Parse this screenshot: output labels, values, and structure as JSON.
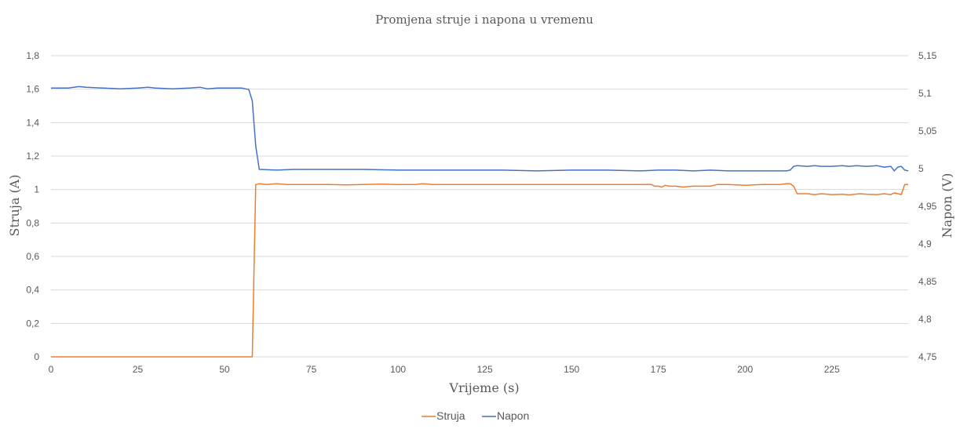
{
  "chart_data": {
    "type": "line",
    "title": "Promjena struje i napona u vremenu",
    "xlabel": "Vrijeme (s)",
    "ylabel": "Struja (A)",
    "y2label": "Napon (V)",
    "xlim": [
      0,
      247
    ],
    "ylim": [
      0,
      1.8
    ],
    "y2lim": [
      4.75,
      5.15
    ],
    "x_ticks": [
      0,
      25,
      50,
      75,
      100,
      125,
      150,
      175,
      200,
      225
    ],
    "x_tick_labels": [
      "0",
      "25",
      "50",
      "75",
      "100",
      "125",
      "150",
      "175",
      "200",
      "225"
    ],
    "y_ticks": [
      0,
      0.2,
      0.4,
      0.6,
      0.8,
      1.0,
      1.2,
      1.4,
      1.6,
      1.8
    ],
    "y_tick_labels": [
      "0",
      "0,2",
      "0,4",
      "0,6",
      "0,8",
      "1",
      "1,2",
      "1,4",
      "1,6",
      "1,8"
    ],
    "y2_ticks": [
      4.75,
      4.8,
      4.85,
      4.9,
      4.95,
      5.0,
      5.05,
      5.1,
      5.15
    ],
    "y2_tick_labels": [
      "4,75",
      "4,8",
      "4,85",
      "4,9",
      "4,95",
      "5",
      "5,05",
      "5,1",
      "5,15"
    ],
    "grid": true,
    "legend_position": "bottom",
    "series": [
      {
        "name": "Struja",
        "axis": "left",
        "color": "#ED7D31",
        "x": [
          0,
          20,
          40,
          57,
          58,
          59,
          60,
          62,
          65,
          68,
          70,
          80,
          85,
          90,
          95,
          100,
          105,
          107,
          110,
          120,
          130,
          140,
          150,
          160,
          170,
          173,
          174,
          175,
          176,
          177,
          178,
          180,
          182,
          185,
          190,
          191,
          192,
          195,
          200,
          205,
          210,
          212,
          213,
          214,
          215,
          218,
          220,
          222,
          225,
          228,
          230,
          233,
          235,
          238,
          240,
          242,
          243,
          244,
          245,
          246,
          247
        ],
        "y": [
          0,
          0,
          0,
          0,
          0,
          1.03,
          1.035,
          1.03,
          1.035,
          1.03,
          1.03,
          1.03,
          1.028,
          1.03,
          1.032,
          1.03,
          1.03,
          1.035,
          1.03,
          1.03,
          1.03,
          1.03,
          1.03,
          1.03,
          1.03,
          1.03,
          1.02,
          1.02,
          1.015,
          1.025,
          1.02,
          1.02,
          1.015,
          1.02,
          1.02,
          1.025,
          1.03,
          1.03,
          1.025,
          1.03,
          1.03,
          1.035,
          1.035,
          1.02,
          0.975,
          0.975,
          0.97,
          0.975,
          0.97,
          0.972,
          0.968,
          0.975,
          0.972,
          0.97,
          0.975,
          0.97,
          0.98,
          0.975,
          0.97,
          1.03,
          1.03
        ]
      },
      {
        "name": "Napon",
        "axis": "right",
        "color": "#4472C4",
        "x": [
          0,
          5,
          8,
          10,
          15,
          20,
          25,
          28,
          30,
          35,
          40,
          43,
          45,
          48,
          50,
          55,
          57,
          58,
          59,
          60,
          65,
          70,
          80,
          90,
          100,
          110,
          120,
          130,
          140,
          150,
          160,
          170,
          175,
          180,
          185,
          190,
          195,
          200,
          205,
          210,
          212,
          213,
          214,
          215,
          218,
          220,
          222,
          225,
          228,
          230,
          232,
          235,
          238,
          240,
          242,
          243,
          244,
          245,
          246,
          247
        ],
        "y": [
          5.107,
          5.107,
          5.109,
          5.108,
          5.107,
          5.106,
          5.107,
          5.108,
          5.107,
          5.106,
          5.107,
          5.108,
          5.106,
          5.107,
          5.107,
          5.107,
          5.105,
          5.09,
          5.03,
          4.999,
          4.998,
          4.999,
          4.999,
          4.999,
          4.998,
          4.998,
          4.998,
          4.998,
          4.997,
          4.998,
          4.998,
          4.997,
          4.998,
          4.998,
          4.997,
          4.998,
          4.997,
          4.997,
          4.997,
          4.997,
          4.997,
          4.998,
          5.003,
          5.004,
          5.003,
          5.004,
          5.003,
          5.003,
          5.004,
          5.003,
          5.004,
          5.003,
          5.004,
          5.002,
          5.003,
          4.997,
          5.002,
          5.003,
          4.998,
          4.997
        ]
      }
    ]
  }
}
